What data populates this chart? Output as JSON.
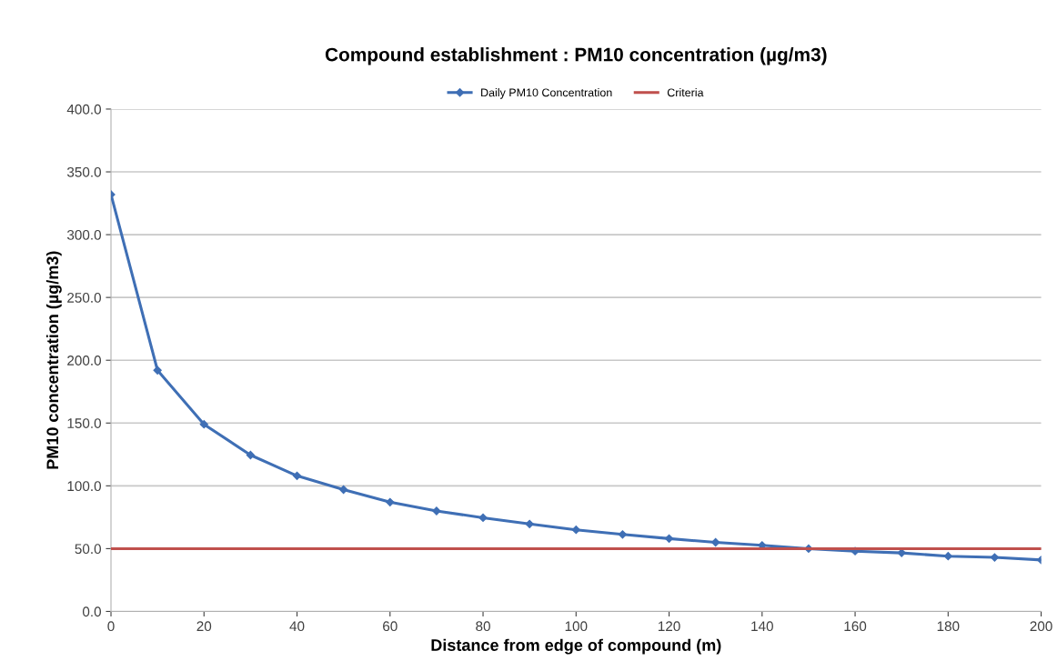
{
  "chart_data": {
    "type": "line",
    "title": "Compound establishment : PM10 concentration (µg/m3)",
    "xlabel": "Distance from edge of compound (m)",
    "ylabel": "PM10 concentration (µg/m3)",
    "x": [
      0,
      10,
      20,
      30,
      40,
      50,
      60,
      70,
      80,
      90,
      100,
      110,
      120,
      130,
      140,
      150,
      160,
      170,
      180,
      190,
      200
    ],
    "series": [
      {
        "name": "Daily PM10 Concentration",
        "color": "#3f6fb5",
        "marker": "diamond",
        "values": [
          332,
          192,
          149,
          124.5,
          108,
          97,
          87,
          80,
          74.6,
          69.6,
          65,
          61.3,
          58,
          55,
          52.6,
          50,
          48,
          46.6,
          44,
          43,
          41
        ]
      },
      {
        "name": "Criteria",
        "color": "#c0504d",
        "marker": "none",
        "values": [
          50,
          50,
          50,
          50,
          50,
          50,
          50,
          50,
          50,
          50,
          50,
          50,
          50,
          50,
          50,
          50,
          50,
          50,
          50,
          50,
          50
        ]
      }
    ],
    "xlim": [
      0,
      200
    ],
    "xticks": [
      0,
      20,
      40,
      60,
      80,
      100,
      120,
      140,
      160,
      180,
      200
    ],
    "ylim": [
      0,
      400
    ],
    "yticks": [
      {
        "value": 0,
        "label": "0.0"
      },
      {
        "value": 50,
        "label": "50.0"
      },
      {
        "value": 100,
        "label": "100.0"
      },
      {
        "value": 150,
        "label": "150.0"
      },
      {
        "value": 200,
        "label": "200.0"
      },
      {
        "value": 250,
        "label": "250.0"
      },
      {
        "value": 300,
        "label": "300.0"
      },
      {
        "value": 350,
        "label": "350.0"
      },
      {
        "value": 400,
        "label": "400.0"
      }
    ],
    "grid": "y",
    "legend": "top",
    "line_style": "solid"
  }
}
